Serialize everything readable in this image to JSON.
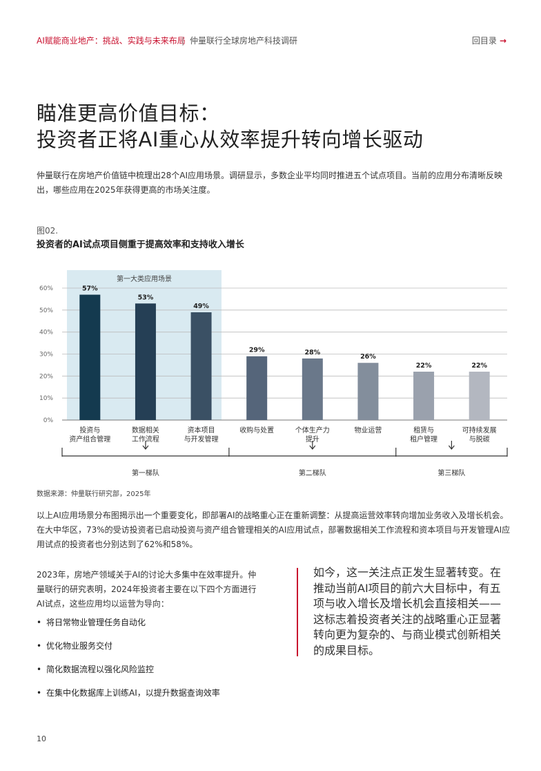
{
  "header": {
    "report_title": "AI赋能商业地产：挑战、实践与未来布局",
    "separator": "|",
    "publisher": "仲量联行全球房地产科技调研",
    "back_label": "回目录",
    "back_arrow": "→"
  },
  "title_line1": "瞄准更高价值目标：",
  "title_line2": "投资者正将AI重心从效率提升转向增长驱动",
  "intro": "仲量联行在房地产价值链中梳理出28个AI应用场景。调研显示，多数企业平均同时推进五个试点项目。当前的应用分布清晰反映出，哪些应用在2025年获得更高的市场关注度。",
  "figure_label": "图02.",
  "figure_title": "投资者的AI试点项目侧重于提高效率和支持收入增长",
  "chart_data": {
    "type": "bar",
    "categories": [
      [
        "投资与",
        "资产组合管理"
      ],
      [
        "数据相关",
        "工作流程"
      ],
      [
        "资本项目",
        "与开发管理"
      ],
      [
        "收购与处置"
      ],
      [
        "个体生产力",
        "提升"
      ],
      [
        "物业运营"
      ],
      [
        "租赁与",
        "租户管理"
      ],
      [
        "可持续发展",
        "与脱碳"
      ]
    ],
    "values": [
      57,
      53,
      49,
      29,
      28,
      26,
      22,
      22
    ],
    "value_labels": [
      "57%",
      "53%",
      "49%",
      "29%",
      "28%",
      "26%",
      "22%",
      "22%"
    ],
    "bar_colors": [
      "#143a4f",
      "#253f55",
      "#3a5064",
      "#55657a",
      "#6a788a",
      "#838e9c",
      "#9aa1ad",
      "#b3b7c0"
    ],
    "yticks": [
      "0%",
      "10%",
      "20%",
      "30%",
      "40%",
      "50%",
      "60%"
    ],
    "ylim": [
      0,
      60
    ],
    "highlight_label": "第一大类应用场景",
    "highlight_color": "#d9eaf1",
    "tiers": [
      {
        "label": "第一梯队",
        "first": 0,
        "last": 2
      },
      {
        "label": "第二梯队",
        "first": 3,
        "last": 5
      },
      {
        "label": "第三梯队",
        "first": 6,
        "last": 7
      }
    ]
  },
  "source": "数据来源：仲量联行研究部，2025年",
  "para2": "以上AI应用场景分布图揭示出一个重要变化，即部署AI的战略重心正在重新调整：从提高运营效率转向增加业务收入及增长机会。在大中华区，73%的受访投资者已启动投资与资产组合管理相关的AI应用试点，部署数据相关工作流程和资本项目与开发管理AI应用试点的投资者也分别达到了62%和58%。",
  "para3": "2023年，房地产领域关于AI的讨论大多集中在效率提升。仲量联行的研究表明，2024年投资者主要在以下四个方面进行AI试点，这些应用均以运营为导向：",
  "bullets": [
    "将日常物业管理任务自动化",
    "优化物业服务交付",
    "简化数据流程以强化风险监控",
    "在集中化数据库上训练AI，以提升数据查询效率"
  ],
  "quote": "如今，这一关注点正发生显著转变。在推动当前AI项目的前六大目标中，有五项与收入增长及增长机会直接相关——这标志着投资者关注的战略重心正显著转向更为复杂的、与商业模式创新相关的成果目标。",
  "page_number": "10"
}
